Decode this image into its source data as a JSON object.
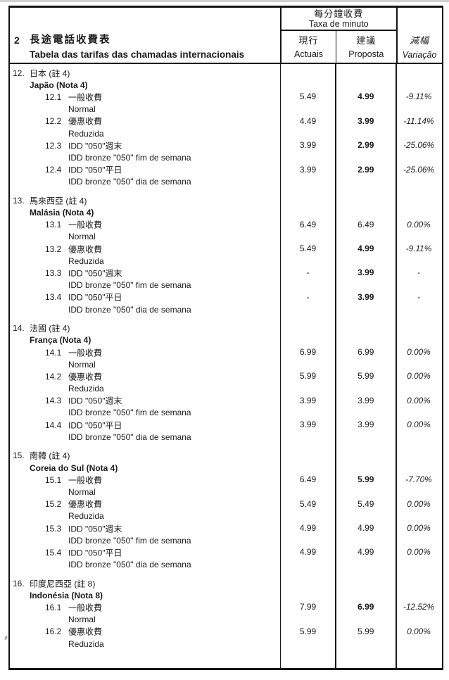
{
  "colors": {
    "paper": "#ffffff",
    "ink": "#1b1b1b",
    "border": "#141414"
  },
  "header": {
    "row_number": "2",
    "title_zh": "長途電話收費表",
    "title_pt": "Tabela das tarifas das chamadas internacionais",
    "rate_group_zh": "每分鐘收費",
    "rate_group_pt": "Taxa de minuto",
    "col_current_zh": "現行",
    "col_current_pt": "Actuais",
    "col_proposed_zh": "建議",
    "col_proposed_pt": "Proposta",
    "col_variation_zh": "減幅",
    "col_variation_pt": "Variação"
  },
  "sections": [
    {
      "number": "12.",
      "name_zh": "日本 (註 4)",
      "name_pt": "Japão (Nota 4)",
      "items": [
        {
          "code": "12.1",
          "label_zh": "一般收費",
          "label_pt": "Normal",
          "current": "5.49",
          "proposed": "4.99",
          "variation": "-9.11%"
        },
        {
          "code": "12.2",
          "label_zh": "優惠收費",
          "label_pt": "Reduzida",
          "current": "4.49",
          "proposed": "3.99",
          "variation": "-11.14%"
        },
        {
          "code": "12.3",
          "label_zh": "IDD \"050\"週末",
          "label_pt": "IDD bronze \"050\" fim de semana",
          "current": "3.99",
          "proposed": "2.99",
          "variation": "-25.06%"
        },
        {
          "code": "12.4",
          "label_zh": "IDD \"050\"平日",
          "label_pt": "IDD bronze \"050\" dia de semana",
          "current": "3.99",
          "proposed": "2.99",
          "variation": "-25.06%"
        }
      ]
    },
    {
      "number": "13.",
      "name_zh": "馬來西亞 (註 4)",
      "name_pt": "Malásia (Nota 4)",
      "items": [
        {
          "code": "13.1",
          "label_zh": "一般收費",
          "label_pt": "Normal",
          "current": "6.49",
          "proposed": "6.49",
          "variation": "0.00%"
        },
        {
          "code": "13.2",
          "label_zh": "優惠收費",
          "label_pt": "Reduzida",
          "current": "5.49",
          "proposed": "4.99",
          "variation": "-9.11%"
        },
        {
          "code": "13.3",
          "label_zh": "IDD \"050\"週末",
          "label_pt": "IDD bronze \"050\" fim de semana",
          "current": "-",
          "proposed": "3.99",
          "variation": "-"
        },
        {
          "code": "13.4",
          "label_zh": "IDD \"050\"平日",
          "label_pt": "IDD bronze \"050\" dia de semana",
          "current": "-",
          "proposed": "3.99",
          "variation": "-"
        }
      ]
    },
    {
      "number": "14.",
      "name_zh": "法國 (註 4)",
      "name_pt": "França (Nota 4)",
      "items": [
        {
          "code": "14.1",
          "label_zh": "一般收費",
          "label_pt": "Normal",
          "current": "6.99",
          "proposed": "6.99",
          "variation": "0.00%"
        },
        {
          "code": "14.2",
          "label_zh": "優惠收費",
          "label_pt": "Reduzida",
          "current": "5.99",
          "proposed": "5.99",
          "variation": "0.00%"
        },
        {
          "code": "14.3",
          "label_zh": "IDD \"050\"週末",
          "label_pt": "IDD bronze \"050\" fim de semana",
          "current": "3.99",
          "proposed": "3.99",
          "variation": "0.00%"
        },
        {
          "code": "14.4",
          "label_zh": "IDD \"050\"平日",
          "label_pt": "IDD bronze \"050\" dia de semana",
          "current": "3.99",
          "proposed": "3.99",
          "variation": "0.00%"
        }
      ]
    },
    {
      "number": "15.",
      "name_zh": "南韓 (註 4)",
      "name_pt": "Coreia do Sul (Nota 4)",
      "items": [
        {
          "code": "15.1",
          "label_zh": "一般收費",
          "label_pt": "Normal",
          "current": "6.49",
          "proposed": "5.99",
          "variation": "-7.70%"
        },
        {
          "code": "15.2",
          "label_zh": "優惠收費",
          "label_pt": "Reduzida",
          "current": "5.49",
          "proposed": "5.49",
          "variation": "0.00%"
        },
        {
          "code": "15.3",
          "label_zh": "IDD \"050\"週末",
          "label_pt": "IDD bronze \"050\" fim de semana",
          "current": "4.99",
          "proposed": "4.99",
          "variation": "0.00%"
        },
        {
          "code": "15.4",
          "label_zh": "IDD \"050\"平日",
          "label_pt": "IDD bronze \"050\" dia de semana",
          "current": "4.99",
          "proposed": "4.99",
          "variation": "0.00%"
        }
      ]
    },
    {
      "number": "16.",
      "name_zh": "印度尼西亞 (註 8)",
      "name_pt": "Indonésia (Nota 8)",
      "items": [
        {
          "code": "16.1",
          "label_zh": "一般收費",
          "label_pt": "Normal",
          "current": "7.99",
          "proposed": "6.99",
          "variation": "-12.52%"
        },
        {
          "code": "16.2",
          "label_zh": "優惠收費",
          "label_pt": "Reduzida",
          "current": "5.99",
          "proposed": "5.99",
          "variation": "0.00%"
        }
      ]
    }
  ]
}
